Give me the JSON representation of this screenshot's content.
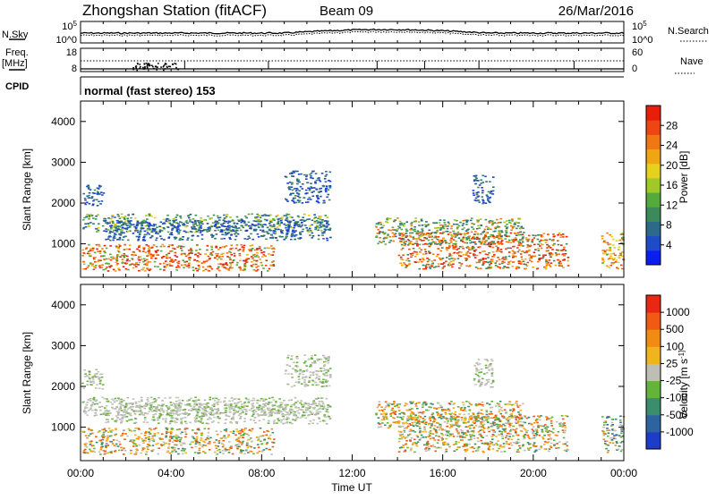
{
  "header": {
    "title": "Zhongshan Station (fitACF)",
    "beam": "Beam 09",
    "date": "26/Mar/2016"
  },
  "top_panels": {
    "nsky_label": "N.Sky",
    "nsky_ticks": [
      "10^5",
      "10^0"
    ],
    "nsearch_label": "N.Search",
    "nsearch_ticks": [
      "10^5",
      "10^0"
    ],
    "freq_label": "Freq.",
    "freq_unit": "[MHz]",
    "freq_ticks": [
      "18",
      "8"
    ],
    "nave_label": "Nave",
    "nave_ticks": [
      "60",
      "0"
    ],
    "cpid_label": "CPID",
    "cpid_text": "normal (fast stereo) 153"
  },
  "axes": {
    "y_label": "Slant Range [km]",
    "y_ticks": [
      "4000",
      "3000",
      "2000",
      "1000"
    ],
    "x_label": "Time UT",
    "x_ticks": [
      "00:00",
      "04:00",
      "08:00",
      "12:00",
      "16:00",
      "20:00",
      "00:00"
    ]
  },
  "colorbars": {
    "power": {
      "label": "Power [dB]",
      "ticks": [
        "28",
        "24",
        "20",
        "16",
        "12",
        "8",
        "4"
      ],
      "colors": [
        "#0a1ef0",
        "#1e4bc8",
        "#2d6a8a",
        "#3c8a5a",
        "#55aa3c",
        "#a0c828",
        "#e6d21e",
        "#f0a514",
        "#f07814",
        "#eb4614",
        "#e61e0a"
      ]
    },
    "velocity": {
      "label": "Velocity [m s^-1]",
      "ticks": [
        "1000",
        "500",
        "100",
        "25",
        "-25",
        "-100",
        "-500",
        "-1000"
      ],
      "colors": [
        "#1e3cc8",
        "#2d64a0",
        "#3c8c6e",
        "#64b43c",
        "#bebeb4",
        "#f0b41e",
        "#f08c14",
        "#f05a14",
        "#e62814"
      ]
    }
  },
  "chart_data": [
    {
      "type": "heatmap",
      "name": "power",
      "x_range_hours": [
        0,
        24
      ],
      "y_range_km": [
        180,
        4500
      ],
      "patches": [
        {
          "t0": 0.0,
          "t1": 1.0,
          "r0": 1950,
          "r1": 2450,
          "level": "blue"
        },
        {
          "t0": 0.0,
          "t1": 11.0,
          "r0": 1300,
          "r1": 1750,
          "level": "mixed-green"
        },
        {
          "t0": 1.0,
          "t1": 11.0,
          "r0": 1100,
          "r1": 1600,
          "level": "blue"
        },
        {
          "t0": 0.0,
          "t1": 8.5,
          "r0": 350,
          "r1": 1000,
          "level": "orange-red"
        },
        {
          "t0": 9.0,
          "t1": 11.0,
          "r0": 2000,
          "r1": 2800,
          "level": "blue"
        },
        {
          "t0": 13.0,
          "t1": 19.5,
          "r0": 1000,
          "r1": 1650,
          "level": "green"
        },
        {
          "t0": 14.0,
          "t1": 21.5,
          "r0": 400,
          "r1": 1300,
          "level": "red"
        },
        {
          "t0": 17.3,
          "t1": 18.2,
          "r0": 2000,
          "r1": 2700,
          "level": "blue"
        },
        {
          "t0": 23.0,
          "t1": 24.0,
          "r0": 400,
          "r1": 1300,
          "level": "orange"
        }
      ]
    },
    {
      "type": "heatmap",
      "name": "velocity",
      "x_range_hours": [
        0,
        24
      ],
      "y_range_km": [
        180,
        4500
      ],
      "patches": [
        {
          "t0": 0.0,
          "t1": 1.0,
          "r0": 1950,
          "r1": 2450,
          "level": "gray"
        },
        {
          "t0": 0.0,
          "t1": 11.0,
          "r0": 1300,
          "r1": 1750,
          "level": "gray"
        },
        {
          "t0": 1.0,
          "t1": 11.0,
          "r0": 1100,
          "r1": 1600,
          "level": "gray"
        },
        {
          "t0": 0.0,
          "t1": 8.5,
          "r0": 350,
          "r1": 1000,
          "level": "orange"
        },
        {
          "t0": 9.0,
          "t1": 11.0,
          "r0": 2000,
          "r1": 2800,
          "level": "gray"
        },
        {
          "t0": 13.0,
          "t1": 19.5,
          "r0": 1000,
          "r1": 1650,
          "level": "orange"
        },
        {
          "t0": 14.0,
          "t1": 21.5,
          "r0": 400,
          "r1": 1300,
          "level": "orange"
        },
        {
          "t0": 17.3,
          "t1": 18.2,
          "r0": 2000,
          "r1": 2700,
          "level": "gray"
        },
        {
          "t0": 23.0,
          "t1": 24.0,
          "r0": 400,
          "r1": 1300,
          "level": "green"
        }
      ]
    }
  ]
}
